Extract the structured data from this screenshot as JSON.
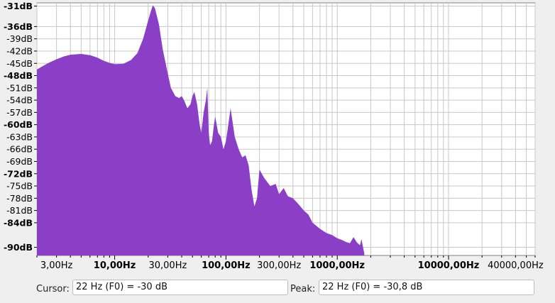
{
  "status": {
    "cursor_label": "Cursor:",
    "cursor_value": "22 Hz (F0) = -30 dB",
    "peak_label": "Peak:",
    "peak_value": "22 Hz (F0) = -30,8 dB"
  },
  "colors": {
    "spectrum_fill": "#8a3fc6",
    "plot_background": "#ffffff",
    "grid": "#c8c8c8",
    "window_background": "#efefef"
  },
  "chart_data": {
    "type": "area",
    "xscale": "log",
    "xlim": [
      2,
      60000
    ],
    "ylim": [
      -92,
      -30.2
    ],
    "grid": true,
    "y_ticks": [
      {
        "value": -31,
        "label": "-31dB",
        "major": true
      },
      {
        "value": -36,
        "label": "-36dB",
        "major": true
      },
      {
        "value": -39,
        "label": "-39dB",
        "major": false
      },
      {
        "value": -42,
        "label": "-42dB",
        "major": false
      },
      {
        "value": -45,
        "label": "-45dB",
        "major": false
      },
      {
        "value": -48,
        "label": "-48dB",
        "major": true
      },
      {
        "value": -51,
        "label": "-51dB",
        "major": false
      },
      {
        "value": -54,
        "label": "-54dB",
        "major": false
      },
      {
        "value": -57,
        "label": "-57dB",
        "major": false
      },
      {
        "value": -60,
        "label": "-60dB",
        "major": true
      },
      {
        "value": -63,
        "label": "-63dB",
        "major": false
      },
      {
        "value": -66,
        "label": "-66dB",
        "major": false
      },
      {
        "value": -69,
        "label": "-69dB",
        "major": false
      },
      {
        "value": -72,
        "label": "-72dB",
        "major": true
      },
      {
        "value": -75,
        "label": "-75dB",
        "major": false
      },
      {
        "value": -78,
        "label": "-78dB",
        "major": false
      },
      {
        "value": -81,
        "label": "-81dB",
        "major": false
      },
      {
        "value": -84,
        "label": "-84dB",
        "major": true
      },
      {
        "value": -90,
        "label": "-90dB",
        "major": true
      }
    ],
    "x_ticks": [
      {
        "value": 3,
        "label": "3,00Hz",
        "major": false
      },
      {
        "value": 10,
        "label": "10,00Hz",
        "major": true
      },
      {
        "value": 30,
        "label": "30,00Hz",
        "major": false
      },
      {
        "value": 100,
        "label": "100,00Hz",
        "major": true
      },
      {
        "value": 300,
        "label": "300,00Hz",
        "major": false
      },
      {
        "value": 1000,
        "label": "1000,00Hz",
        "major": true
      },
      {
        "value": 10000,
        "label": "10000,00Hz",
        "major": true
      },
      {
        "value": 40000,
        "label": "40000,00Hz",
        "major": false
      }
    ],
    "series": [
      {
        "x": [
          2,
          2.5,
          3,
          3.5,
          4,
          5,
          6,
          7,
          8,
          9,
          10,
          12,
          14,
          16,
          18,
          20,
          21,
          22,
          23,
          25,
          27,
          30,
          32,
          35,
          38,
          40,
          42,
          45,
          48,
          50,
          52,
          55,
          58,
          60,
          63,
          66,
          68,
          70,
          72,
          75,
          78,
          80,
          85,
          90,
          95,
          100,
          105,
          110,
          120,
          130,
          140,
          150,
          160,
          170,
          180,
          190,
          200,
          220,
          250,
          280,
          300,
          330,
          360,
          400,
          450,
          500,
          550,
          600,
          700,
          800,
          900,
          1000,
          1100,
          1200,
          1300,
          1400,
          1500,
          1600,
          1650,
          1700,
          1750
        ],
        "y": [
          -46.5,
          -45,
          -44,
          -43.3,
          -42.9,
          -42.7,
          -43,
          -43.6,
          -44.4,
          -44.9,
          -45.2,
          -45.1,
          -44.2,
          -42.5,
          -39,
          -34.5,
          -32.5,
          -30.8,
          -31.5,
          -35.5,
          -41.5,
          -47.5,
          -51,
          -53,
          -53.5,
          -53,
          -54,
          -56,
          -55,
          -53,
          -52,
          -55,
          -60,
          -62,
          -57,
          -54,
          -51,
          -62,
          -65,
          -64,
          -60,
          -58,
          -62,
          -63,
          -66,
          -64,
          -60,
          -56,
          -63,
          -66,
          -68,
          -67.5,
          -70,
          -76,
          -80,
          -78,
          -71,
          -73,
          -75,
          -74.5,
          -77,
          -75.5,
          -77.5,
          -78,
          -79.5,
          -81,
          -82,
          -84,
          -85.5,
          -86.5,
          -87,
          -87.8,
          -88.2,
          -88.7,
          -89,
          -87.5,
          -88.8,
          -89.5,
          -88,
          -89.8,
          -91.5
        ]
      }
    ]
  }
}
